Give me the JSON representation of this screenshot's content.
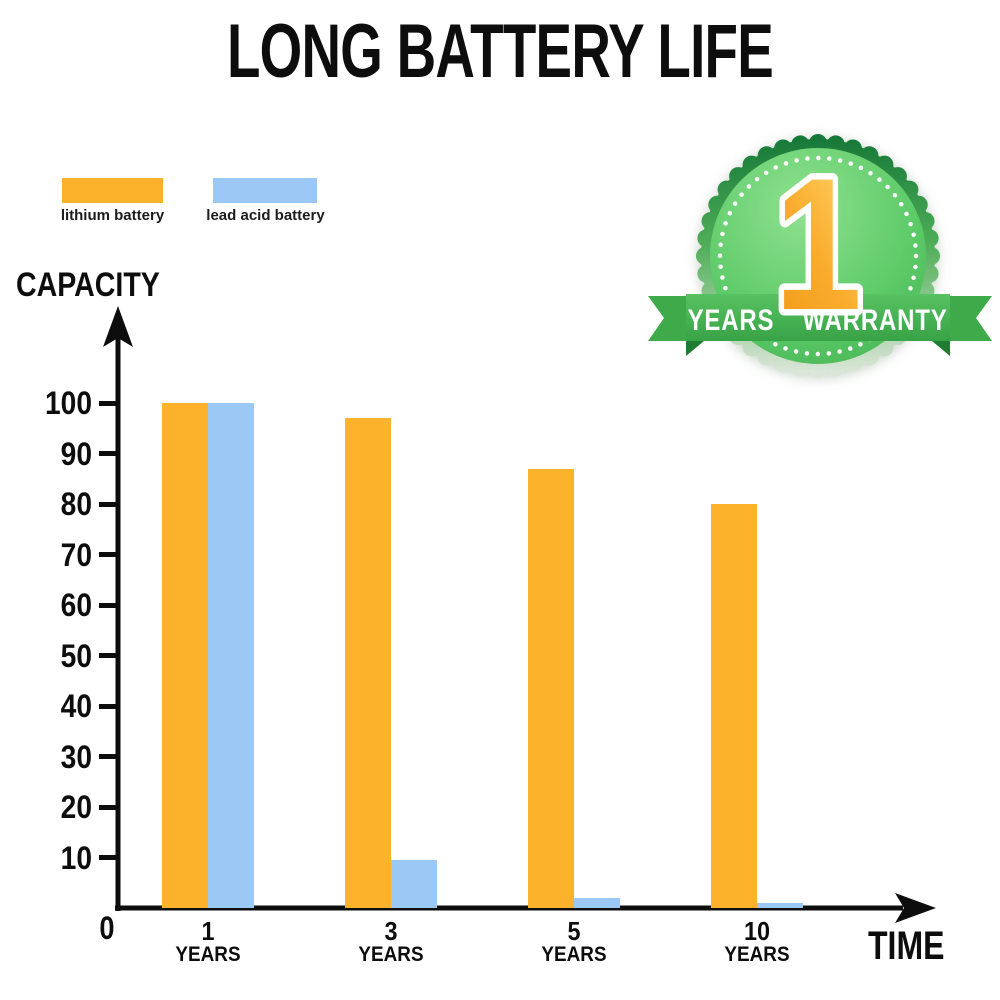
{
  "title": "LONG BATTERY LIFE",
  "legend": {
    "items": [
      {
        "label": "lithium battery",
        "color": "#FDB22C"
      },
      {
        "label": "lead acid battery",
        "color": "#9CC8F5"
      }
    ]
  },
  "badge": {
    "number": "1",
    "ribbon_text": "YEARS WARRANTY",
    "colors": {
      "circle_face_light": "#8FE18F",
      "circle_face_dark": "#3FAE4E",
      "ring_dark": "#177939",
      "ribbon_green": "#46B34F",
      "number_orange": "#F7A427",
      "dots": "#FFFFFF"
    }
  },
  "axes": {
    "capacity_label": "CAPACITY",
    "time_label": "TIME",
    "origin_label": "0"
  },
  "chart_data": {
    "type": "bar",
    "title": "LONG BATTERY LIFE",
    "xlabel": "TIME",
    "ylabel": "CAPACITY",
    "categories": [
      "1 YEARS",
      "3 YEARS",
      "5 YEARS",
      "10 YEARS"
    ],
    "series": [
      {
        "name": "lithium battery",
        "color": "#FDB22C",
        "values": [
          100,
          97,
          87,
          80
        ]
      },
      {
        "name": "lead acid battery",
        "color": "#9CC8F5",
        "values": [
          100,
          9.5,
          2,
          1
        ]
      }
    ],
    "yticks": [
      10,
      20,
      30,
      40,
      50,
      60,
      70,
      80,
      90,
      100
    ],
    "ylim": [
      0,
      110
    ],
    "grid": false,
    "legend_position": "top-left",
    "axis_color": "#0D0D0D"
  }
}
